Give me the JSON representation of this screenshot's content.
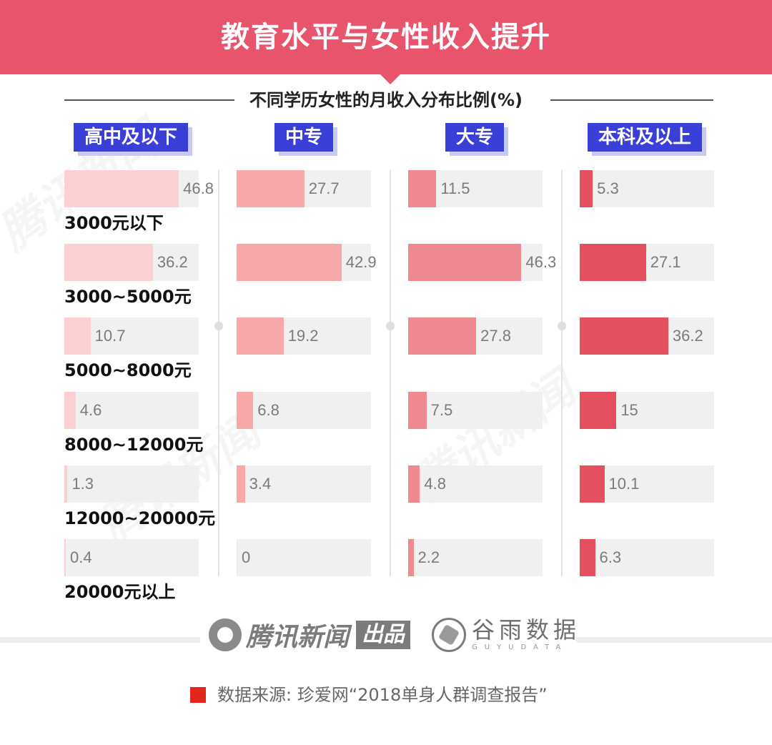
{
  "header": {
    "title": "教育水平与女性收入提升"
  },
  "chart_data": {
    "type": "bar",
    "title": "教育水平与女性收入提升",
    "subtitle": "不同学历女性的月收入分布比例(%)",
    "categories": [
      "3000元以下",
      "3000~5000元",
      "5000~8000元",
      "8000~12000元",
      "12000~20000元",
      "20000元以上"
    ],
    "series": [
      {
        "name": "高中及以下",
        "color": "#fcd0d3",
        "values": [
          46.8,
          36.2,
          10.7,
          4.6,
          1.3,
          0.4
        ]
      },
      {
        "name": "中专",
        "color": "#f8a8a9",
        "values": [
          27.7,
          42.9,
          19.2,
          6.8,
          3.4,
          0
        ]
      },
      {
        "name": "大专",
        "color": "#ee8992",
        "values": [
          11.5,
          46.3,
          27.8,
          7.5,
          4.8,
          2.2
        ]
      },
      {
        "name": "本科及以上",
        "color": "#e5505f",
        "values": [
          5.3,
          27.1,
          36.2,
          15,
          10.1,
          6.3
        ]
      }
    ],
    "xlim": [
      0,
      100
    ]
  },
  "footer": {
    "logo_tencent": "腾讯新闻",
    "logo_tencent_badge": "出品",
    "logo_guyu": "谷雨数据",
    "logo_guyu_en": "GUYUDATA",
    "source": "数据来源: 珍爱网“2018单身人群调查报告”"
  }
}
